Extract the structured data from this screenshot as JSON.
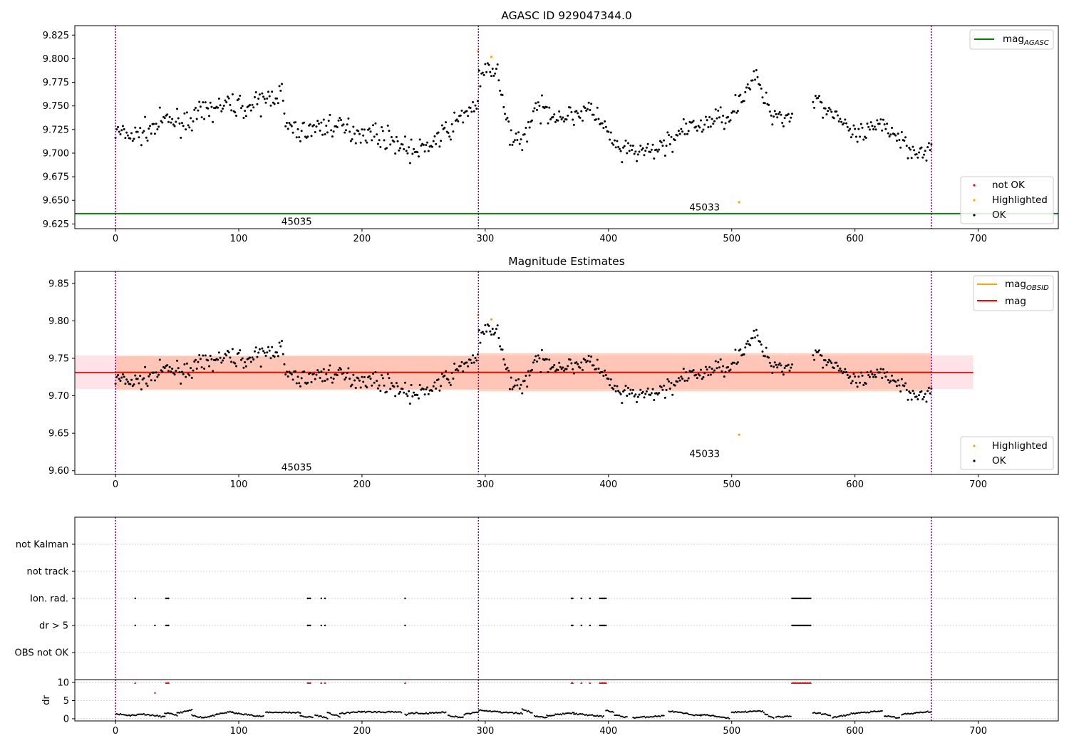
{
  "chart_data": [
    {
      "type": "scatter",
      "title": "AGASC ID 929047344.0",
      "xlim": [
        -33,
        765
      ],
      "ylim": [
        9.62,
        9.835
      ],
      "xticks": [
        0,
        100,
        200,
        300,
        400,
        500,
        600,
        700
      ],
      "yticks": [
        9.625,
        9.65,
        9.675,
        9.7,
        9.725,
        9.75,
        9.775,
        9.8,
        9.825
      ],
      "ytick_decimals": 3,
      "vlines_x": [
        0,
        294.5,
        662
      ],
      "hlines": [
        {
          "name": "mag_AGASC",
          "y": 9.636,
          "x": [
            -33,
            765
          ],
          "color": "#008000"
        }
      ],
      "legend_lines": [
        {
          "label": "mag",
          "sub": "AGASC",
          "color": "#008000"
        }
      ],
      "legend_lines_position": "upper right",
      "legend_points": [
        {
          "label": "not OK",
          "color": "#ff0000"
        },
        {
          "label": "Highlighted",
          "color": "#ffa500"
        },
        {
          "label": "OK",
          "color": "#000000"
        }
      ],
      "legend_points_position": "lower right",
      "annotations": [
        {
          "text": "45035",
          "x": 147,
          "y": 9.628
        },
        {
          "text": "45033",
          "x": 478,
          "y": 9.643
        }
      ],
      "highlighted_points": [
        [
          294.2,
          9.808
        ],
        [
          305,
          9.802
        ],
        [
          506,
          9.648
        ]
      ],
      "series_ref": "mag_series"
    },
    {
      "type": "scatter",
      "title": "Magnitude Estimates",
      "xlim": [
        -33,
        765
      ],
      "ylim": [
        9.595,
        9.866
      ],
      "xticks": [
        0,
        100,
        200,
        300,
        400,
        500,
        600,
        700
      ],
      "yticks": [
        9.6,
        9.65,
        9.7,
        9.75,
        9.8,
        9.85
      ],
      "ytick_decimals": 2,
      "vlines_x": [
        0,
        294.5,
        662
      ],
      "bands": [
        {
          "x": [
            -33,
            696
          ],
          "y": [
            9.709,
            9.754
          ],
          "color": "#ffc0cb"
        },
        {
          "x": [
            0,
            294.5
          ],
          "y": [
            9.708,
            9.753
          ],
          "color": "#ffa07a"
        },
        {
          "x": [
            294.5,
            662
          ],
          "y": [
            9.706,
            9.757
          ],
          "color": "#ffa07a"
        }
      ],
      "hlines": [
        {
          "name": "mag_OBSID",
          "y": 9.732,
          "x": [
            0,
            294.5
          ],
          "color": "#ffa500"
        },
        {
          "name": "mag_OBSID",
          "y": 9.732,
          "x": [
            294.5,
            662
          ],
          "color": "#ffa500"
        },
        {
          "name": "mag",
          "y": 9.731,
          "x": [
            -33,
            696
          ],
          "color": "#ff0000"
        }
      ],
      "legend_lines": [
        {
          "label": "mag",
          "sub": "OBSID",
          "color": "#ffa500"
        },
        {
          "label": "mag",
          "sub": "",
          "color": "#ff0000"
        }
      ],
      "legend_lines_position": "upper right",
      "legend_points": [
        {
          "label": "Highlighted",
          "color": "#ffa500"
        },
        {
          "label": "OK",
          "color": "#000000"
        }
      ],
      "legend_points_position": "lower right",
      "annotations": [
        {
          "text": "45035",
          "x": 147,
          "y": 9.605
        },
        {
          "text": "45033",
          "x": 478,
          "y": 9.623
        }
      ],
      "highlighted_points": [
        [
          294.2,
          9.808
        ],
        [
          305,
          9.802
        ],
        [
          506,
          9.648
        ]
      ],
      "series_ref": "mag_series"
    },
    {
      "type": "scatter",
      "title": "",
      "xlim": [
        -33,
        765
      ],
      "categories": [
        "not Kalman",
        "not track",
        "Ion. rad.",
        "dr > 5",
        "OBS not OK"
      ],
      "vlines_x": [
        0,
        294.5,
        662
      ],
      "flags": {
        "Ion. rad.": [
          16,
          41,
          42,
          43,
          156,
          157,
          158,
          167,
          170,
          235,
          370,
          371,
          378,
          385,
          393,
          394,
          395,
          396,
          397,
          398,
          549,
          550,
          551,
          552,
          553,
          554,
          555,
          556,
          557,
          558,
          559,
          560,
          561,
          562,
          563,
          564
        ],
        "dr > 5": [
          16,
          32,
          41,
          42,
          43,
          156,
          157,
          158,
          167,
          170,
          235,
          370,
          371,
          378,
          385,
          393,
          394,
          395,
          396,
          397,
          398,
          549,
          550,
          551,
          552,
          553,
          554,
          555,
          556,
          557,
          558,
          559,
          560,
          561,
          562,
          563,
          564
        ]
      }
    },
    {
      "type": "scatter",
      "title": "",
      "ylabel": "dr",
      "xlim": [
        -33,
        765
      ],
      "ylim": [
        -0.6,
        10.8
      ],
      "xticks": [
        0,
        100,
        200,
        300,
        400,
        500,
        600,
        700
      ],
      "yticks": [
        0,
        5,
        10
      ],
      "ytick_decimals": 0,
      "vlines_x": [
        0,
        294.5,
        662
      ],
      "clipped_points": [
        [
          16,
          9.9
        ],
        [
          32,
          7.2
        ],
        [
          41,
          9.9
        ],
        [
          42,
          9.9
        ],
        [
          43,
          9.9
        ],
        [
          156,
          9.9
        ],
        [
          157,
          9.9
        ],
        [
          158,
          9.9
        ],
        [
          167,
          9.9
        ],
        [
          170,
          9.9
        ],
        [
          235,
          9.9
        ],
        [
          370,
          9.9
        ],
        [
          371,
          9.9
        ],
        [
          378,
          9.9
        ],
        [
          385,
          9.9
        ],
        [
          393,
          9.9
        ],
        [
          394,
          9.9
        ],
        [
          395,
          9.9
        ],
        [
          396,
          9.9
        ],
        [
          397,
          9.9
        ],
        [
          398,
          9.9
        ],
        [
          549,
          9.9
        ],
        [
          550,
          9.9
        ],
        [
          551,
          9.9
        ],
        [
          552,
          9.9
        ],
        [
          553,
          9.9
        ],
        [
          554,
          9.9
        ],
        [
          555,
          9.9
        ],
        [
          556,
          9.9
        ],
        [
          557,
          9.9
        ],
        [
          558,
          9.9
        ],
        [
          559,
          9.9
        ],
        [
          560,
          9.9
        ],
        [
          561,
          9.9
        ],
        [
          562,
          9.9
        ],
        [
          563,
          9.9
        ],
        [
          564,
          9.9
        ]
      ],
      "dr_segments": [
        [
          0,
          12,
          1.4,
          0.9
        ],
        [
          12,
          22,
          0.9,
          1.3
        ],
        [
          22,
          40,
          1.3,
          0.5
        ],
        [
          40,
          50,
          1.6,
          1.0
        ],
        [
          50,
          62,
          1.5,
          2.4
        ],
        [
          62,
          72,
          0.9,
          0.3
        ],
        [
          72,
          82,
          0.4,
          1.0
        ],
        [
          82,
          95,
          1.2,
          2.0
        ],
        [
          95,
          120,
          1.6,
          0.6
        ],
        [
          122,
          150,
          1.8,
          1.7
        ],
        [
          150,
          160,
          0.7,
          0.4
        ],
        [
          162,
          172,
          1.0,
          0.2
        ],
        [
          172,
          182,
          1.6,
          0.6
        ],
        [
          182,
          200,
          1.4,
          2.0
        ],
        [
          200,
          232,
          1.9,
          1.8
        ],
        [
          235,
          245,
          1.1,
          1.8
        ],
        [
          246,
          268,
          1.4,
          1.8
        ],
        [
          270,
          282,
          0.9,
          0.3
        ],
        [
          283,
          294,
          1.2,
          1.8
        ],
        [
          295,
          312,
          2.3,
          1.9
        ],
        [
          312,
          330,
          1.8,
          1.5
        ],
        [
          330,
          338,
          2.6,
          1.7
        ],
        [
          340,
          350,
          0.8,
          0.2
        ],
        [
          350,
          372,
          0.9,
          1.6
        ],
        [
          372,
          396,
          1.4,
          0.6
        ],
        [
          398,
          404,
          2.4,
          1.8
        ],
        [
          405,
          415,
          1.0,
          0.4
        ],
        [
          420,
          445,
          0.3,
          0.8
        ],
        [
          449,
          475,
          2.1,
          0.8
        ],
        [
          475,
          498,
          1.2,
          0.2
        ],
        [
          500,
          525,
          1.8,
          2.1
        ],
        [
          526,
          534,
          1.6,
          0.1
        ],
        [
          536,
          548,
          0.5,
          0.7
        ],
        [
          566,
          580,
          1.7,
          1.0
        ],
        [
          582,
          595,
          0.3,
          1.1
        ],
        [
          596,
          622,
          1.4,
          2.1
        ],
        [
          624,
          636,
          0.8,
          0.2
        ],
        [
          638,
          662,
          1.2,
          2.0
        ]
      ]
    }
  ],
  "mag_series": {
    "n_points": 663,
    "anchors": [
      [
        0,
        9.722
      ],
      [
        15,
        9.718
      ],
      [
        30,
        9.726
      ],
      [
        40,
        9.735
      ],
      [
        55,
        9.733
      ],
      [
        65,
        9.738
      ],
      [
        80,
        9.748
      ],
      [
        95,
        9.752
      ],
      [
        110,
        9.748
      ],
      [
        125,
        9.759
      ],
      [
        135,
        9.765
      ],
      [
        138,
        9.728
      ],
      [
        150,
        9.722
      ],
      [
        160,
        9.726
      ],
      [
        175,
        9.73
      ],
      [
        190,
        9.724
      ],
      [
        205,
        9.722
      ],
      [
        215,
        9.718
      ],
      [
        225,
        9.714
      ],
      [
        235,
        9.706
      ],
      [
        245,
        9.7
      ],
      [
        255,
        9.71
      ],
      [
        265,
        9.718
      ],
      [
        275,
        9.73
      ],
      [
        285,
        9.745
      ],
      [
        294,
        9.752
      ],
      [
        295,
        9.775
      ],
      [
        303,
        9.79
      ],
      [
        310,
        9.785
      ],
      [
        315,
        9.745
      ],
      [
        320,
        9.72
      ],
      [
        330,
        9.712
      ],
      [
        340,
        9.745
      ],
      [
        350,
        9.745
      ],
      [
        365,
        9.738
      ],
      [
        380,
        9.745
      ],
      [
        390,
        9.742
      ],
      [
        400,
        9.718
      ],
      [
        410,
        9.7
      ],
      [
        420,
        9.702
      ],
      [
        430,
        9.7
      ],
      [
        440,
        9.704
      ],
      [
        450,
        9.714
      ],
      [
        460,
        9.722
      ],
      [
        470,
        9.728
      ],
      [
        480,
        9.732
      ],
      [
        490,
        9.738
      ],
      [
        500,
        9.742
      ],
      [
        510,
        9.765
      ],
      [
        520,
        9.78
      ],
      [
        530,
        9.745
      ],
      [
        540,
        9.74
      ],
      [
        548,
        9.738
      ],
      [
        568,
        9.76
      ],
      [
        575,
        9.748
      ],
      [
        585,
        9.742
      ],
      [
        595,
        9.72
      ],
      [
        605,
        9.718
      ],
      [
        615,
        9.725
      ],
      [
        625,
        9.73
      ],
      [
        635,
        9.718
      ],
      [
        645,
        9.705
      ],
      [
        655,
        9.703
      ],
      [
        662,
        9.702
      ]
    ],
    "gaps": [
      [
        549,
        566
      ]
    ],
    "scatter": 0.011,
    "seed": 7
  }
}
